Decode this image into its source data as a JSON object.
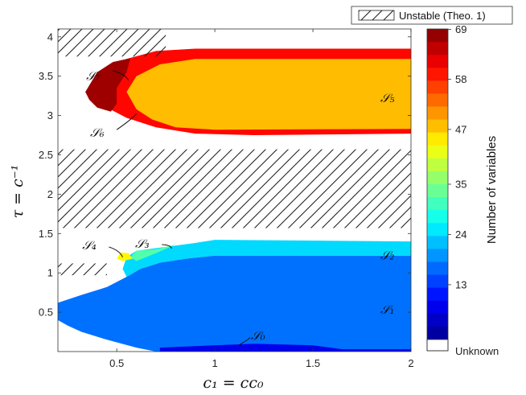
{
  "chart_data": {
    "type": "heatmap",
    "xlabel": "c₁ = cc₀",
    "ylabel": "τ = c⁻¹",
    "xlim": [
      0.2,
      2.0
    ],
    "ylim": [
      0.0,
      4.1
    ],
    "x_ticks": [
      "0.5",
      "1",
      "1.5",
      "2"
    ],
    "y_ticks": [
      "0.5",
      "1",
      "1.5",
      "2",
      "2.5",
      "3",
      "3.5",
      "4"
    ],
    "x_tick_values": [
      0.5,
      1,
      1.5,
      2
    ],
    "y_tick_values": [
      0.5,
      1,
      1.5,
      2,
      2.5,
      3,
      3.5,
      4
    ],
    "colorbar": {
      "label": "Number of variables",
      "ticks": [
        "69",
        "58",
        "47",
        "35",
        "24",
        "13"
      ],
      "tick_values": [
        69,
        58,
        47,
        35,
        24,
        13
      ],
      "range": [
        1,
        69
      ],
      "unknown_label": "Unknown",
      "unknown_color": "#ffffff"
    },
    "legend": {
      "label": "Unstable (Theo. 1)",
      "pattern": "hatch",
      "placement": "top-right outside"
    },
    "regions": [
      {
        "name": "S0",
        "label": "𝒮₀",
        "value": 8
      },
      {
        "name": "S1",
        "label": "𝒮₁",
        "value": 17
      },
      {
        "name": "S2",
        "label": "𝒮₂",
        "value": 24
      },
      {
        "name": "S3",
        "label": "𝒮₃",
        "value": 32
      },
      {
        "name": "S4",
        "label": "𝒮₄",
        "value": 44
      },
      {
        "name": "S5",
        "label": "𝒮₅",
        "value": 48
      },
      {
        "name": "S6",
        "label": "𝒮₆",
        "value": 60
      },
      {
        "name": "S7",
        "label": "𝒮₇",
        "value": 67
      }
    ],
    "unstable_bands": [
      {
        "tau_range": [
          1.57,
          2.57
        ],
        "c1_range": [
          0.2,
          2.0
        ]
      },
      {
        "tau_range": [
          3.75,
          4.1
        ],
        "c1_range": [
          0.2,
          0.75
        ]
      },
      {
        "tau_range": [
          0.97,
          1.12
        ],
        "c1_range": [
          0.2,
          0.45
        ]
      }
    ]
  }
}
